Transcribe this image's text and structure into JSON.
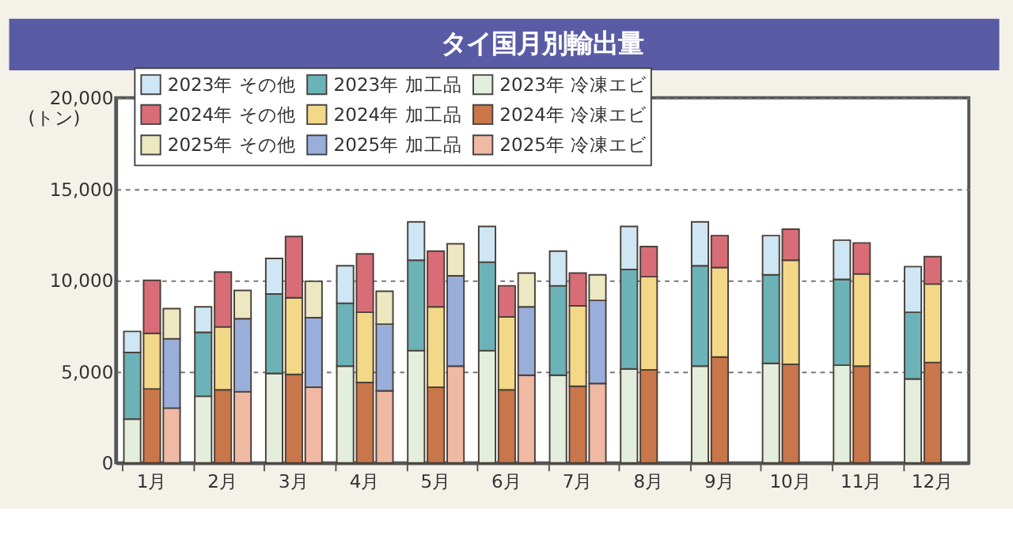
{
  "chart_data": {
    "type": "bar",
    "title": "タイ国月別輸出量",
    "ylabel": "(トン)",
    "categories": [
      "1月",
      "2月",
      "3月",
      "4月",
      "5月",
      "6月",
      "7月",
      "8月",
      "9月",
      "10月",
      "11月",
      "12月"
    ],
    "ylim": [
      0,
      20000
    ],
    "yticks": [
      {
        "value": 0,
        "label": "0"
      },
      {
        "value": 5000,
        "label": "5,000"
      },
      {
        "value": 10000,
        "label": "10,000"
      },
      {
        "value": 15000,
        "label": "15,000"
      },
      {
        "value": 20000,
        "label": "20,000"
      }
    ],
    "grid": "y",
    "legend": "top left",
    "series": [
      {
        "name": "2023年 冷凍エビ",
        "color": "#e3eedc",
        "base": [
          0,
          0,
          0,
          0,
          0,
          0,
          0,
          0,
          0,
          0,
          0,
          0
        ],
        "values": [
          2400,
          3650,
          4900,
          5300,
          6150,
          6150,
          4800,
          5150,
          5300,
          5450,
          5350,
          4600
        ]
      },
      {
        "name": "2023年 加工品",
        "color": "#6bb3b8",
        "base": [
          2400,
          3650,
          4900,
          5300,
          6150,
          6150,
          4800,
          5150,
          5300,
          5450,
          5350,
          4600
        ],
        "values": [
          3650,
          3500,
          4350,
          3450,
          4950,
          4850,
          4900,
          5450,
          5500,
          4850,
          4700,
          3650
        ]
      },
      {
        "name": "2023年 その他",
        "color": "#cfe6f5",
        "base": [
          6050,
          7150,
          9250,
          8750,
          11100,
          11000,
          9700,
          10600,
          10800,
          10300,
          10050,
          8250
        ],
        "values": [
          1150,
          1400,
          1950,
          2050,
          2100,
          1950,
          1900,
          2350,
          2400,
          2150,
          2150,
          2500
        ]
      },
      {
        "name": "2024年 冷凍エビ",
        "color": "#c8764a",
        "base": [
          0,
          0,
          0,
          0,
          0,
          0,
          0,
          0,
          0,
          0,
          0,
          0
        ],
        "values": [
          4050,
          4000,
          4850,
          4400,
          4150,
          4000,
          4200,
          5100,
          5800,
          5400,
          5300,
          5500
        ]
      },
      {
        "name": "2024年 加工品",
        "color": "#f3d888",
        "base": [
          4050,
          4000,
          4850,
          4400,
          4150,
          4000,
          4200,
          5100,
          5800,
          5400,
          5300,
          5500
        ],
        "values": [
          3050,
          3450,
          4200,
          3850,
          4400,
          4000,
          4400,
          5100,
          4900,
          5700,
          5050,
          4300
        ]
      },
      {
        "name": "2024年 その他",
        "color": "#d86d78",
        "base": [
          7100,
          7450,
          9050,
          8250,
          8550,
          8000,
          8600,
          10200,
          10700,
          11100,
          10350,
          9800
        ],
        "values": [
          2900,
          3000,
          3350,
          3200,
          3050,
          1700,
          1800,
          1650,
          1750,
          1700,
          1700,
          1500
        ]
      },
      {
        "name": "2025年 冷凍エビ",
        "color": "#efb9a4",
        "base": [
          0,
          0,
          0,
          0,
          0,
          0,
          0,
          null,
          null,
          null,
          null,
          null
        ],
        "values": [
          3000,
          3900,
          4150,
          3950,
          5300,
          4800,
          4350,
          null,
          null,
          null,
          null,
          null
        ]
      },
      {
        "name": "2025年 加工品",
        "color": "#9aaedb",
        "base": [
          3000,
          3900,
          4150,
          3950,
          5300,
          4800,
          4350,
          null,
          null,
          null,
          null,
          null
        ],
        "values": [
          3800,
          4000,
          3800,
          3650,
          4950,
          3750,
          4550,
          null,
          null,
          null,
          null,
          null
        ]
      },
      {
        "name": "2025年 その他",
        "color": "#ece8c2",
        "base": [
          6800,
          7900,
          7950,
          7600,
          10250,
          8550,
          8900,
          null,
          null,
          null,
          null,
          null
        ],
        "values": [
          1650,
          1550,
          2000,
          1800,
          1750,
          1850,
          1400,
          null,
          null,
          null,
          null,
          null
        ]
      }
    ]
  }
}
